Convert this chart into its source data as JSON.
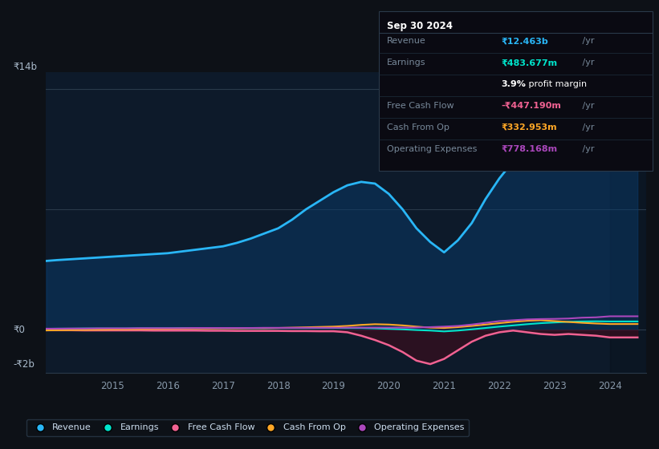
{
  "bg_color": "#0d1117",
  "plot_bg_color": "#0d1a2a",
  "y_label_top": "₹14b",
  "y_label_zero": "₹0",
  "y_label_bottom": "-₹2b",
  "x_ticks": [
    2015,
    2016,
    2017,
    2018,
    2019,
    2020,
    2021,
    2022,
    2023,
    2024
  ],
  "revenue_color": "#29b6f6",
  "earnings_color": "#00e5cc",
  "fcf_color": "#f06292",
  "cashfromop_color": "#ffa726",
  "opex_color": "#ab47bc",
  "legend": [
    {
      "label": "Revenue",
      "color": "#29b6f6"
    },
    {
      "label": "Earnings",
      "color": "#00e5cc"
    },
    {
      "label": "Free Cash Flow",
      "color": "#f06292"
    },
    {
      "label": "Cash From Op",
      "color": "#ffa726"
    },
    {
      "label": "Operating Expenses",
      "color": "#ab47bc"
    }
  ],
  "info_box_title": "Sep 30 2024",
  "info_rows": [
    {
      "label": "Revenue",
      "value": "₹12.463b",
      "unit": " /yr",
      "value_color": "#29b6f6"
    },
    {
      "label": "Earnings",
      "value": "₹483.677m",
      "unit": " /yr",
      "value_color": "#00e5cc"
    },
    {
      "label": "",
      "value": "3.9%",
      "value_suffix": " profit margin",
      "unit": "",
      "value_color": "#ffffff"
    },
    {
      "label": "Free Cash Flow",
      "value": "-₹447.190m",
      "unit": " /yr",
      "value_color": "#f06292"
    },
    {
      "label": "Cash From Op",
      "value": "₹332.953m",
      "unit": " /yr",
      "value_color": "#ffa726"
    },
    {
      "label": "Operating Expenses",
      "value": "₹778.168m",
      "unit": " /yr",
      "value_color": "#ab47bc"
    }
  ],
  "years": [
    2013.8,
    2014.0,
    2014.25,
    2014.5,
    2014.75,
    2015.0,
    2015.25,
    2015.5,
    2015.75,
    2016.0,
    2016.25,
    2016.5,
    2016.75,
    2017.0,
    2017.25,
    2017.5,
    2017.75,
    2018.0,
    2018.25,
    2018.5,
    2018.75,
    2019.0,
    2019.25,
    2019.5,
    2019.75,
    2020.0,
    2020.25,
    2020.5,
    2020.75,
    2021.0,
    2021.25,
    2021.5,
    2021.75,
    2022.0,
    2022.25,
    2022.5,
    2022.75,
    2023.0,
    2023.25,
    2023.5,
    2023.75,
    2024.0,
    2024.25,
    2024.5
  ],
  "revenue": [
    4.0,
    4.05,
    4.1,
    4.15,
    4.2,
    4.25,
    4.3,
    4.35,
    4.4,
    4.45,
    4.55,
    4.65,
    4.75,
    4.85,
    5.05,
    5.3,
    5.6,
    5.9,
    6.4,
    7.0,
    7.5,
    8.0,
    8.4,
    8.6,
    8.5,
    7.9,
    7.0,
    5.9,
    5.1,
    4.5,
    5.2,
    6.2,
    7.6,
    8.8,
    9.8,
    10.5,
    11.2,
    11.9,
    12.4,
    12.9,
    13.1,
    13.0,
    12.7,
    12.5
  ],
  "earnings": [
    0.05,
    0.06,
    0.06,
    0.07,
    0.07,
    0.07,
    0.07,
    0.08,
    0.08,
    0.08,
    0.09,
    0.09,
    0.09,
    0.09,
    0.09,
    0.09,
    0.09,
    0.1,
    0.1,
    0.1,
    0.1,
    0.1,
    0.1,
    0.1,
    0.08,
    0.05,
    0.02,
    -0.02,
    -0.05,
    -0.1,
    -0.05,
    0.02,
    0.1,
    0.18,
    0.25,
    0.32,
    0.38,
    0.42,
    0.46,
    0.48,
    0.49,
    0.48,
    0.48,
    0.48
  ],
  "fcf": [
    -0.03,
    -0.03,
    -0.03,
    -0.04,
    -0.04,
    -0.04,
    -0.04,
    -0.04,
    -0.05,
    -0.05,
    -0.05,
    -0.05,
    -0.06,
    -0.06,
    -0.07,
    -0.07,
    -0.07,
    -0.07,
    -0.08,
    -0.08,
    -0.09,
    -0.09,
    -0.15,
    -0.35,
    -0.6,
    -0.9,
    -1.3,
    -1.8,
    -2.0,
    -1.7,
    -1.2,
    -0.7,
    -0.35,
    -0.15,
    -0.05,
    -0.15,
    -0.25,
    -0.3,
    -0.25,
    -0.3,
    -0.35,
    -0.45,
    -0.45,
    -0.45
  ],
  "cashfromop": [
    -0.04,
    -0.03,
    -0.02,
    -0.01,
    0.0,
    0.01,
    0.02,
    0.03,
    0.04,
    0.05,
    0.06,
    0.07,
    0.07,
    0.08,
    0.08,
    0.09,
    0.09,
    0.1,
    0.12,
    0.14,
    0.16,
    0.18,
    0.22,
    0.28,
    0.32,
    0.3,
    0.25,
    0.18,
    0.12,
    0.1,
    0.15,
    0.22,
    0.3,
    0.38,
    0.46,
    0.52,
    0.55,
    0.5,
    0.45,
    0.4,
    0.36,
    0.33,
    0.33,
    0.33
  ],
  "opex": [
    0.06,
    0.06,
    0.07,
    0.07,
    0.08,
    0.08,
    0.08,
    0.09,
    0.09,
    0.09,
    0.09,
    0.1,
    0.1,
    0.1,
    0.1,
    0.1,
    0.11,
    0.11,
    0.11,
    0.11,
    0.11,
    0.11,
    0.12,
    0.12,
    0.12,
    0.12,
    0.12,
    0.13,
    0.15,
    0.18,
    0.22,
    0.3,
    0.4,
    0.5,
    0.55,
    0.6,
    0.62,
    0.63,
    0.65,
    0.7,
    0.72,
    0.78,
    0.78,
    0.78
  ],
  "ylim": [
    -2.5,
    15.0
  ],
  "grid_lines": [
    0,
    7,
    14
  ],
  "shade_start": 2024.0
}
